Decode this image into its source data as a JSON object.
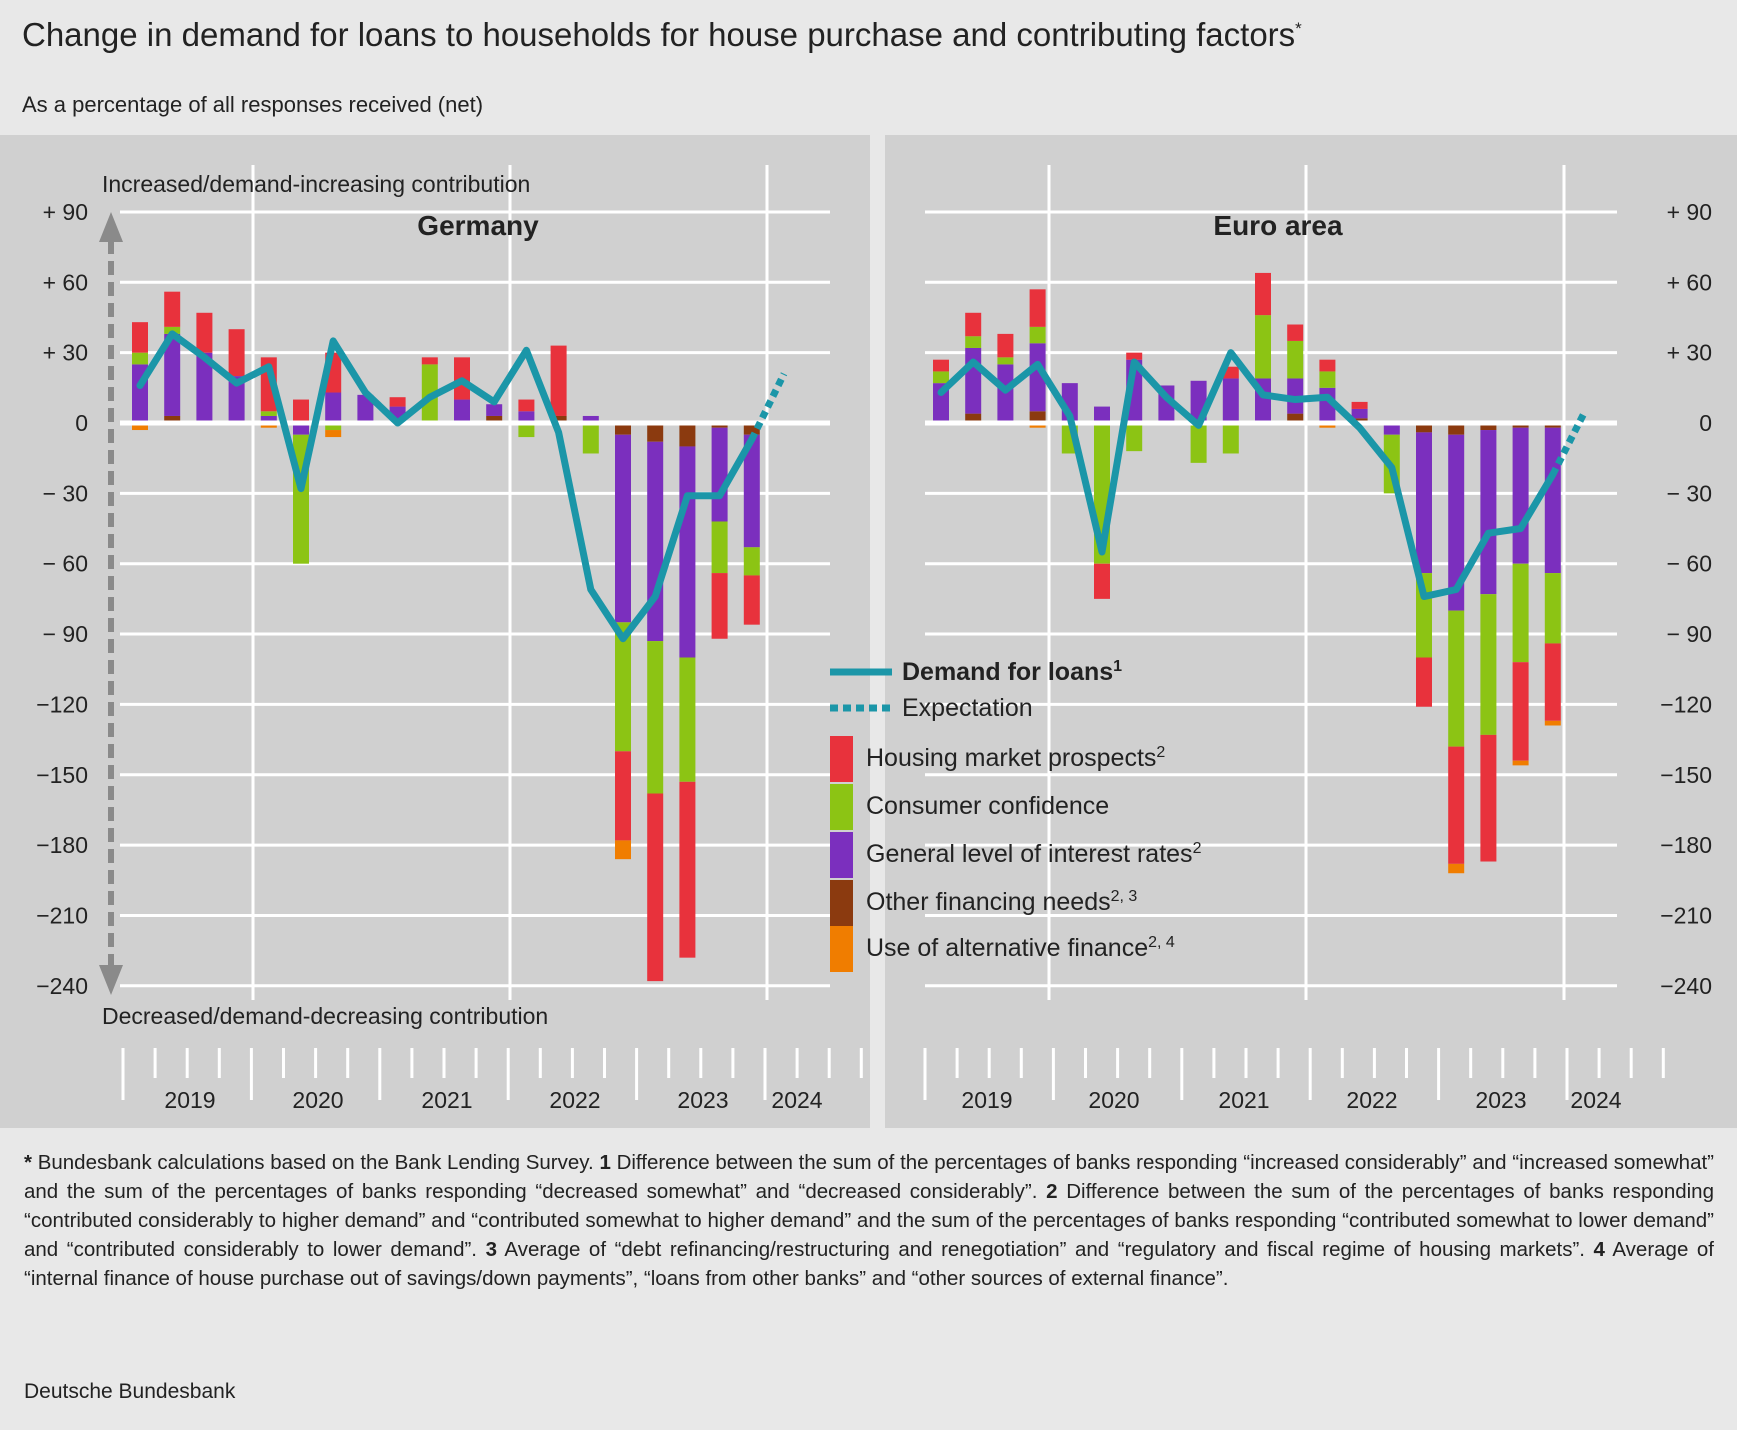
{
  "title": "Change in demand for loans to households for house purchase and contributing factors",
  "title_mark": "*",
  "subtitle": "As a percentage of all responses received (net)",
  "source": "Deutsche Bundesbank",
  "notes": [
    {
      "mark": "*",
      "text": " Bundesbank calculations based on the Bank Lending Survey. "
    },
    {
      "mark": "1",
      "text": " Difference between the sum of the percentages of banks responding “increased considerably” and “increased somewhat” and the sum of the percentages of banks responding “decreased somewhat” and “decreased considerably”. "
    },
    {
      "mark": "2",
      "text": " Difference between the sum of the percentages of banks responding “contributed considerably to higher demand” and “contributed somewhat to higher demand” and the sum of the percentages of banks responding “contributed somewhat to lower demand” and “contributed considerably to lower demand”. "
    },
    {
      "mark": "3",
      "text": " Average of “debt refinancing/restructuring and renegotiation” and “regulatory and fiscal regime of housing markets”. "
    },
    {
      "mark": "4",
      "text": " Average of “internal finance of house purchase out of savings/down payments”, “loans from other banks” and “other sources of external finance”."
    }
  ],
  "colors": {
    "housing": "#e8323c",
    "consumer": "#8cc414",
    "interest": "#7b2fbe",
    "other_fin": "#8b3a0f",
    "alt_fin": "#f07d00",
    "demand": "#1b96a8",
    "background": "#e8e8e8",
    "panel": "#d0d0d0"
  },
  "chart_data": {
    "type": "bar",
    "stacked": true,
    "y_tick_labels": [
      "+ 90",
      "+ 60",
      "+ 30",
      "0",
      "− 30",
      "− 60",
      "− 90",
      "−120",
      "−150",
      "−180",
      "−210",
      "−240"
    ],
    "y_tick_values": [
      90,
      60,
      30,
      0,
      -30,
      -60,
      -90,
      -120,
      -150,
      -180,
      -210,
      -240
    ],
    "ylim": [
      -240,
      90
    ],
    "x_labels": [
      "2019",
      "2020",
      "2021",
      "2022",
      "2023",
      "2024"
    ],
    "x_period": "quarterly, 2019 Q1 – 2023 Q4, expectation for 2024 Q1",
    "arrow_label_top": "Increased/demand-increasing contribution",
    "arrow_label_bottom": "Decreased/demand-decreasing contribution",
    "legend": [
      {
        "key": "demand",
        "label": "Demand for loans",
        "sup": "1",
        "kind": "line",
        "bold": true
      },
      {
        "key": "expectation",
        "label": "Expectation",
        "sup": "",
        "kind": "dash",
        "bold": false
      },
      {
        "key": "housing",
        "label": "Housing market prospects",
        "sup": "2",
        "kind": "box",
        "bold": false
      },
      {
        "key": "consumer",
        "label": "Consumer confidence",
        "sup": "",
        "kind": "box",
        "bold": false
      },
      {
        "key": "interest",
        "label": "General level of interest rates",
        "sup": "2",
        "kind": "box",
        "bold": false
      },
      {
        "key": "other_fin",
        "label": "Other financing needs",
        "sup": "2, 3",
        "kind": "box",
        "bold": false
      },
      {
        "key": "alt_fin",
        "label": "Use of alternative finance",
        "sup": "2, 4",
        "kind": "box",
        "bold": false
      }
    ],
    "stack_order": [
      "other_fin",
      "interest",
      "consumer",
      "housing"
    ],
    "panels": [
      {
        "name": "Germany",
        "factors": {
          "alt_fin": [
            -3,
            0,
            0,
            0,
            -2,
            0,
            -3,
            0,
            0,
            0,
            -1,
            0,
            0,
            0,
            0,
            -8,
            0,
            0,
            0,
            0
          ],
          "other_fin": [
            0,
            3,
            0,
            0,
            0,
            0,
            0,
            0,
            0,
            0,
            0,
            3,
            0,
            3,
            0,
            -5,
            -8,
            -10,
            -2,
            -5
          ],
          "interest": [
            25,
            35,
            30,
            20,
            3,
            -5,
            13,
            12,
            7,
            0,
            10,
            5,
            5,
            0,
            3,
            -80,
            -85,
            -90,
            -40,
            -48
          ],
          "consumer": [
            5,
            3,
            0,
            0,
            2,
            -55,
            -3,
            0,
            0,
            25,
            0,
            0,
            -6,
            0,
            -13,
            -55,
            -65,
            -53,
            -22,
            -12
          ],
          "housing": [
            13,
            15,
            17,
            20,
            23,
            10,
            17,
            0,
            4,
            3,
            18,
            0,
            5,
            30,
            0,
            -38,
            -80,
            -75,
            -28,
            -21
          ]
        },
        "demand": [
          16,
          38,
          28,
          17,
          24,
          -28,
          35,
          13,
          0,
          11,
          18,
          9,
          31,
          -4,
          -71,
          -92,
          -74,
          -31,
          -31,
          -7
        ],
        "expectation": 21
      },
      {
        "name": "Euro area",
        "factors": {
          "alt_fin": [
            0,
            0,
            0,
            -2,
            0,
            0,
            0,
            0,
            0,
            0,
            0,
            0,
            -2,
            0,
            0,
            0,
            -4,
            0,
            -2,
            -2
          ],
          "other_fin": [
            0,
            4,
            0,
            5,
            0,
            0,
            0,
            0,
            0,
            0,
            0,
            4,
            0,
            2,
            0,
            -4,
            -5,
            -3,
            -2,
            -2
          ],
          "interest": [
            17,
            28,
            25,
            29,
            17,
            7,
            27,
            16,
            18,
            19,
            19,
            15,
            15,
            4,
            -5,
            -60,
            -75,
            -70,
            -58,
            -62
          ],
          "consumer": [
            5,
            5,
            3,
            7,
            -13,
            -60,
            -12,
            0,
            -17,
            -13,
            27,
            16,
            7,
            0,
            -25,
            -36,
            -58,
            -60,
            -42,
            -30
          ],
          "housing": [
            5,
            10,
            10,
            16,
            0,
            -15,
            3,
            0,
            0,
            5,
            18,
            7,
            5,
            3,
            0,
            -21,
            -50,
            -54,
            -42,
            -33
          ]
        },
        "demand": [
          13,
          26,
          14,
          25,
          3,
          -55,
          26,
          11,
          -1,
          30,
          12,
          10,
          11,
          -2,
          -19,
          -74,
          -71,
          -47,
          -45,
          -22
        ],
        "expectation": 5
      }
    ]
  }
}
